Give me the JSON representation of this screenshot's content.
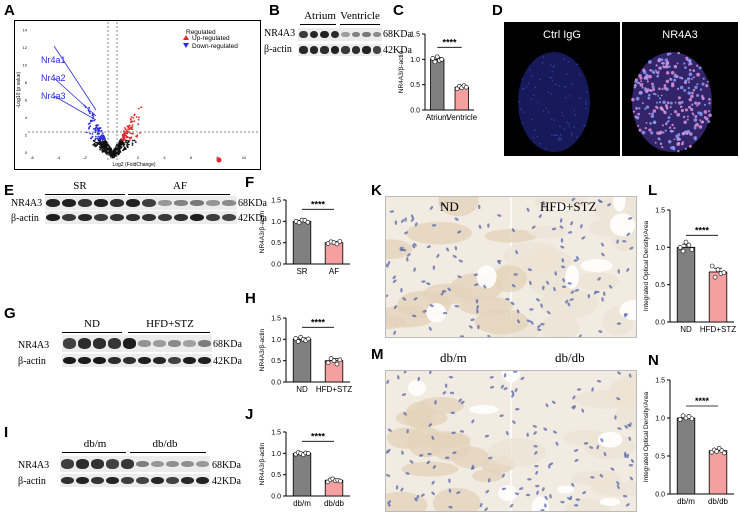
{
  "panels": {
    "A": {
      "letter": "A",
      "ylabel": "-Log10 (p value)",
      "xlabel": "Log2 (FoldChange)",
      "xticks": [
        "-6",
        "-4",
        "-2",
        "0",
        "2",
        "4",
        "6",
        "8",
        "10"
      ],
      "yticks": [
        "0",
        "2",
        "4",
        "6",
        "8",
        "10",
        "12",
        "14"
      ],
      "genes": [
        "Nr4a1",
        "Nr4a2",
        "Nr4a3"
      ],
      "legend_title": "Regulated",
      "legend_up": "Up-regulated",
      "legend_down": "Down-regulated",
      "colors": {
        "up": "#e8242a",
        "down": "#2b2bd6",
        "ns": "#111111"
      }
    },
    "B": {
      "letter": "B",
      "group1": "Atrium",
      "group2": "Ventricle",
      "row1": "NR4A3",
      "row2": "β-actin",
      "kda1": "68KDa",
      "kda2": "42KDa"
    },
    "C": {
      "letter": "C"
    },
    "D": {
      "letter": "D",
      "left": "Ctrl IgG",
      "right": "NR4A3"
    },
    "E": {
      "letter": "E",
      "group1": "SR",
      "group2": "AF",
      "row1": "NR4A3",
      "row2": "β-actin",
      "kda1": "68KDa",
      "kda2": "42KDa"
    },
    "F": {
      "letter": "F"
    },
    "G": {
      "letter": "G",
      "group1": "ND",
      "group2": "HFD+STZ",
      "row1": "NR4A3",
      "row2": "β-actin",
      "kda1": "68KDa",
      "kda2": "42KDa"
    },
    "H": {
      "letter": "H"
    },
    "I": {
      "letter": "I",
      "group1": "db/m",
      "group2": "db/db",
      "row1": "NR4A3",
      "row2": "β-actin",
      "kda1": "68KDa",
      "kda2": "42KDa"
    },
    "J": {
      "letter": "J"
    },
    "K": {
      "letter": "K",
      "left": "ND",
      "right": "HFD+STZ"
    },
    "L": {
      "letter": "L"
    },
    "M": {
      "letter": "M",
      "left": "db/m",
      "right": "db/db"
    },
    "N": {
      "letter": "N"
    }
  },
  "chart_data": [
    {
      "panel": "C",
      "type": "bar",
      "categories": [
        "Atrium",
        "Ventricle"
      ],
      "values": [
        1.0,
        0.45
      ],
      "points": [
        [
          1.02,
          0.95,
          1.05,
          0.98,
          1.0
        ],
        [
          0.42,
          0.47,
          0.44,
          0.48,
          0.45
        ]
      ],
      "colors": [
        "#808080",
        "#f4a0a0"
      ],
      "ylabel": "NR4A3/β-actin",
      "ylim": [
        0,
        1.5
      ],
      "yticks": [
        "0.0",
        "0.5",
        "1.0",
        "1.5"
      ],
      "significance": "****"
    },
    {
      "panel": "F",
      "type": "bar",
      "categories": [
        "SR",
        "AF"
      ],
      "values": [
        1.0,
        0.5
      ],
      "points": [
        [
          1.0,
          0.97,
          1.03,
          1.02,
          0.98
        ],
        [
          0.48,
          0.52,
          0.5,
          0.47,
          0.53
        ]
      ],
      "colors": [
        "#808080",
        "#f4a0a0"
      ],
      "ylabel": "NR4A3/β-actin",
      "ylim": [
        0,
        1.5
      ],
      "yticks": [
        "0.0",
        "0.5",
        "1.0",
        "1.5"
      ],
      "significance": "****"
    },
    {
      "panel": "H",
      "type": "bar",
      "categories": [
        "ND",
        "HFD+STZ"
      ],
      "values": [
        1.0,
        0.5
      ],
      "points": [
        [
          1.02,
          0.95,
          1.05,
          1.0,
          0.97,
          1.01
        ],
        [
          0.45,
          0.55,
          0.5,
          0.42,
          0.52
        ]
      ],
      "colors": [
        "#808080",
        "#f4a0a0"
      ],
      "ylabel": "NR4A3/β-actin",
      "ylim": [
        0,
        1.5
      ],
      "yticks": [
        "0.0",
        "0.5",
        "1.0",
        "1.5"
      ],
      "significance": "****"
    },
    {
      "panel": "J",
      "type": "bar",
      "categories": [
        "db/m",
        "db/db"
      ],
      "values": [
        1.0,
        0.37
      ],
      "points": [
        [
          0.98,
          1.02,
          1.0,
          0.97,
          1.01,
          1.0
        ],
        [
          0.33,
          0.38,
          0.4,
          0.36,
          0.37,
          0.35
        ]
      ],
      "colors": [
        "#808080",
        "#f4a0a0"
      ],
      "ylabel": "NR4A3/β-actin",
      "ylim": [
        0,
        1.5
      ],
      "yticks": [
        "0.0",
        "0.5",
        "1.0",
        "1.5"
      ],
      "significance": "****"
    },
    {
      "panel": "L",
      "type": "bar",
      "categories": [
        "ND",
        "HFD+STZ"
      ],
      "values": [
        1.0,
        0.67
      ],
      "points": [
        [
          1.0,
          0.95,
          1.07,
          1.03,
          0.97
        ],
        [
          0.75,
          0.6,
          0.7,
          0.65,
          0.66
        ]
      ],
      "colors": [
        "#808080",
        "#f4a0a0"
      ],
      "ylabel": "Integrated Optical Density/Area",
      "ylim": [
        0,
        1.5
      ],
      "yticks": [
        "0.0",
        "0.5",
        "1.0",
        "1.5"
      ],
      "significance": "****"
    },
    {
      "panel": "N",
      "type": "bar",
      "categories": [
        "db/m",
        "db/db"
      ],
      "values": [
        1.0,
        0.57
      ],
      "points": [
        [
          0.98,
          1.03,
          1.0,
          1.02,
          0.99
        ],
        [
          0.55,
          0.58,
          0.56,
          0.6,
          0.57,
          0.54
        ]
      ],
      "colors": [
        "#808080",
        "#f4a0a0"
      ],
      "ylabel": "Integrated Optical Density/Area",
      "ylim": [
        0,
        1.5
      ],
      "yticks": [
        "0.0",
        "0.5",
        "1.0",
        "1.5"
      ],
      "significance": "****"
    }
  ]
}
